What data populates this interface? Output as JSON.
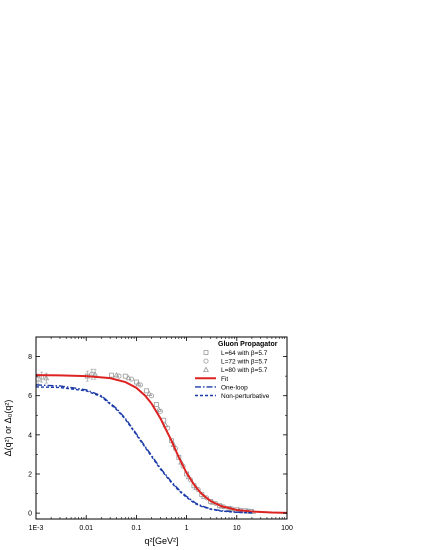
{
  "chart_data": {
    "type": "line",
    "xscale": "log",
    "xlim": [
      0.001,
      100
    ],
    "ylim": [
      -0.3,
      9
    ],
    "xticks": [
      {
        "value": 0.001,
        "label": "1E-3"
      },
      {
        "value": 0.01,
        "label": "0.01"
      },
      {
        "value": 0.1,
        "label": "0.1"
      },
      {
        "value": 1,
        "label": "1"
      },
      {
        "value": 10,
        "label": "10"
      },
      {
        "value": 100,
        "label": "100"
      }
    ],
    "yticks": [
      0,
      2,
      4,
      6,
      8
    ],
    "xlabel": "q²[GeV²]",
    "ylabel": "Δ(q²) or Δ₀(q²)",
    "legend": {
      "title": "Gluon Propagator",
      "placement": "top-right"
    },
    "series": [
      {
        "name": "L=64 with β=5.7",
        "kind": "scatter",
        "marker": "square",
        "color": "#9a9a9a",
        "x": [
          0.0011,
          0.0105,
          0.032,
          0.06,
          0.1,
          0.16,
          0.25,
          0.35,
          0.5,
          0.7,
          1.0,
          1.4,
          2.0,
          3.0,
          4.5,
          7,
          10,
          14,
          19
        ],
        "y": [
          6.85,
          7.0,
          7.05,
          7.0,
          6.7,
          6.25,
          5.55,
          4.75,
          3.7,
          2.85,
          2.0,
          1.4,
          0.95,
          0.6,
          0.38,
          0.24,
          0.17,
          0.12,
          0.09
        ]
      },
      {
        "name": "L=72 with β=5.7",
        "kind": "scatter",
        "marker": "circle",
        "color": "#9a9a9a",
        "x": [
          0.0013,
          0.013,
          0.045,
          0.08,
          0.12,
          0.2,
          0.3,
          0.42,
          0.6,
          0.85,
          1.2,
          1.7,
          2.5,
          3.8,
          5.5,
          8,
          12,
          17
        ],
        "y": [
          6.95,
          7.1,
          7.0,
          6.85,
          6.55,
          6.0,
          5.2,
          4.35,
          3.3,
          2.4,
          1.7,
          1.2,
          0.78,
          0.5,
          0.32,
          0.21,
          0.14,
          0.1
        ]
      },
      {
        "name": "L=80 with β=5.7",
        "kind": "scatter",
        "marker": "triangle",
        "color": "#9a9a9a",
        "x": [
          0.0016,
          0.015,
          0.04,
          0.07,
          0.11,
          0.18,
          0.28,
          0.38,
          0.55,
          0.78,
          1.1,
          1.55,
          2.2,
          3.3,
          5,
          7.5,
          11,
          16,
          21
        ],
        "y": [
          6.9,
          7.1,
          7.05,
          6.9,
          6.6,
          6.1,
          5.3,
          4.5,
          3.5,
          2.6,
          1.85,
          1.3,
          0.85,
          0.55,
          0.35,
          0.22,
          0.15,
          0.11,
          0.08
        ]
      },
      {
        "name": "Fit",
        "kind": "line",
        "style": "solid",
        "color": "#dd2222",
        "x": [
          0.001,
          0.003,
          0.01,
          0.03,
          0.06,
          0.1,
          0.15,
          0.2,
          0.3,
          0.4,
          0.5,
          0.7,
          1.0,
          1.5,
          2,
          3,
          5,
          10,
          20,
          50,
          100
        ],
        "y": [
          7.05,
          7.04,
          7.0,
          6.9,
          6.7,
          6.4,
          6.0,
          5.6,
          4.85,
          4.2,
          3.7,
          2.85,
          2.05,
          1.35,
          0.98,
          0.62,
          0.35,
          0.16,
          0.08,
          0.03,
          0.01
        ]
      },
      {
        "name": "One-loop",
        "kind": "line",
        "style": "dashdot",
        "color": "#1a3aa8",
        "x": [
          0.001,
          0.003,
          0.01,
          0.02,
          0.04,
          0.06,
          0.1,
          0.15,
          0.2,
          0.3,
          0.5,
          0.7,
          1.0,
          1.5,
          2,
          3,
          5,
          10,
          20
        ],
        "y": [
          6.55,
          6.5,
          6.3,
          6.0,
          5.35,
          4.85,
          4.05,
          3.4,
          2.95,
          2.3,
          1.6,
          1.2,
          0.85,
          0.52,
          0.37,
          0.22,
          0.12,
          0.05,
          0.02
        ]
      },
      {
        "name": "Non-perturbative",
        "kind": "line",
        "style": "dash",
        "color": "#1a3aa8",
        "x": [
          0.001,
          0.003,
          0.01,
          0.02,
          0.04,
          0.06,
          0.1,
          0.15,
          0.2,
          0.3,
          0.5,
          0.7,
          1.0,
          1.5,
          2,
          3,
          5,
          10,
          20
        ],
        "y": [
          6.45,
          6.42,
          6.25,
          5.95,
          5.3,
          4.8,
          4.0,
          3.35,
          2.9,
          2.25,
          1.55,
          1.15,
          0.8,
          0.48,
          0.34,
          0.2,
          0.1,
          0.04,
          0.01
        ]
      }
    ]
  }
}
